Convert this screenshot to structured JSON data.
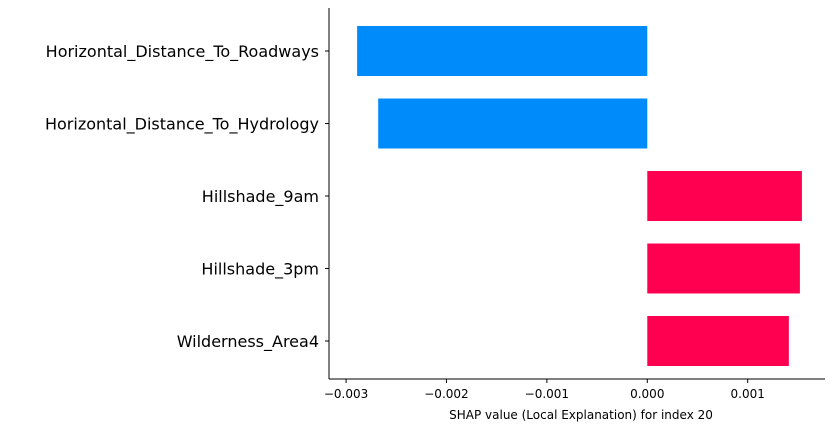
{
  "chart_data": {
    "type": "bar",
    "orientation": "horizontal",
    "categories": [
      "Horizontal_Distance_To_Roadways",
      "Horizontal_Distance_To_Hydrology",
      "Hillshade_9am",
      "Hillshade_3pm",
      "Wilderness_Area4"
    ],
    "values": [
      -0.00289,
      -0.00268,
      0.00154,
      0.00152,
      0.00141
    ],
    "xlabel": "SHAP value (Local Explanation) for index 20",
    "ylabel": "",
    "title": "",
    "xlim": [
      -0.00317,
      0.00177
    ],
    "xticks": [
      -0.003,
      -0.002,
      -0.001,
      0.0,
      0.001
    ],
    "xtick_labels": [
      "−0.003",
      "−0.002",
      "−0.001",
      "0.000",
      "0.001"
    ],
    "grid": false,
    "colors": {
      "positive": "#ff0051",
      "negative": "#008bfb"
    }
  }
}
